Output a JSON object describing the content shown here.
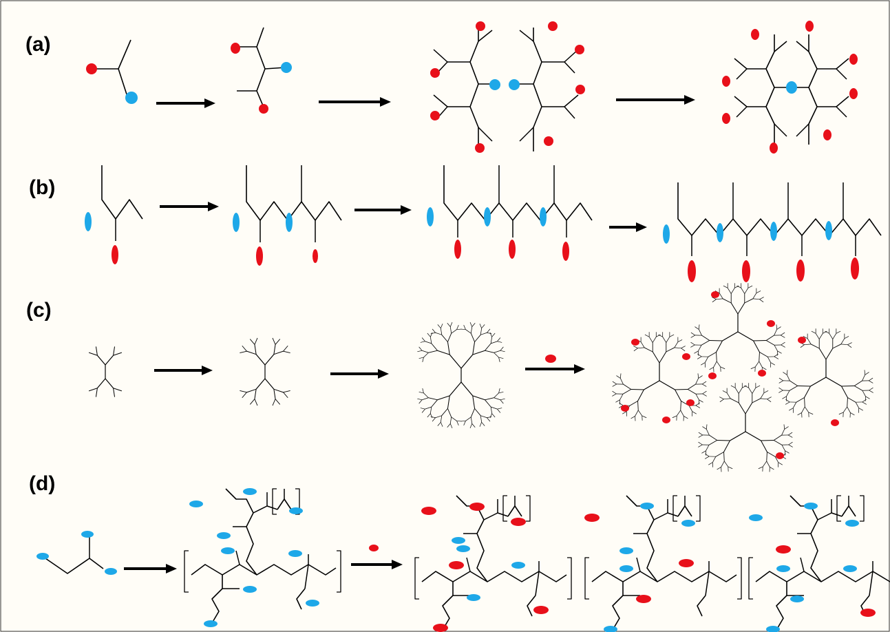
{
  "rows": [
    {
      "label": "(a)",
      "name": "row-a"
    },
    {
      "label": "(b)",
      "name": "row-b"
    },
    {
      "label": "(c)",
      "name": "row-c"
    },
    {
      "label": "(d)",
      "name": "row-d"
    }
  ],
  "colors": {
    "background": "#fffdf7",
    "line": "#000000",
    "red_group": "#e8101a",
    "blue_group": "#1ea8e8"
  }
}
